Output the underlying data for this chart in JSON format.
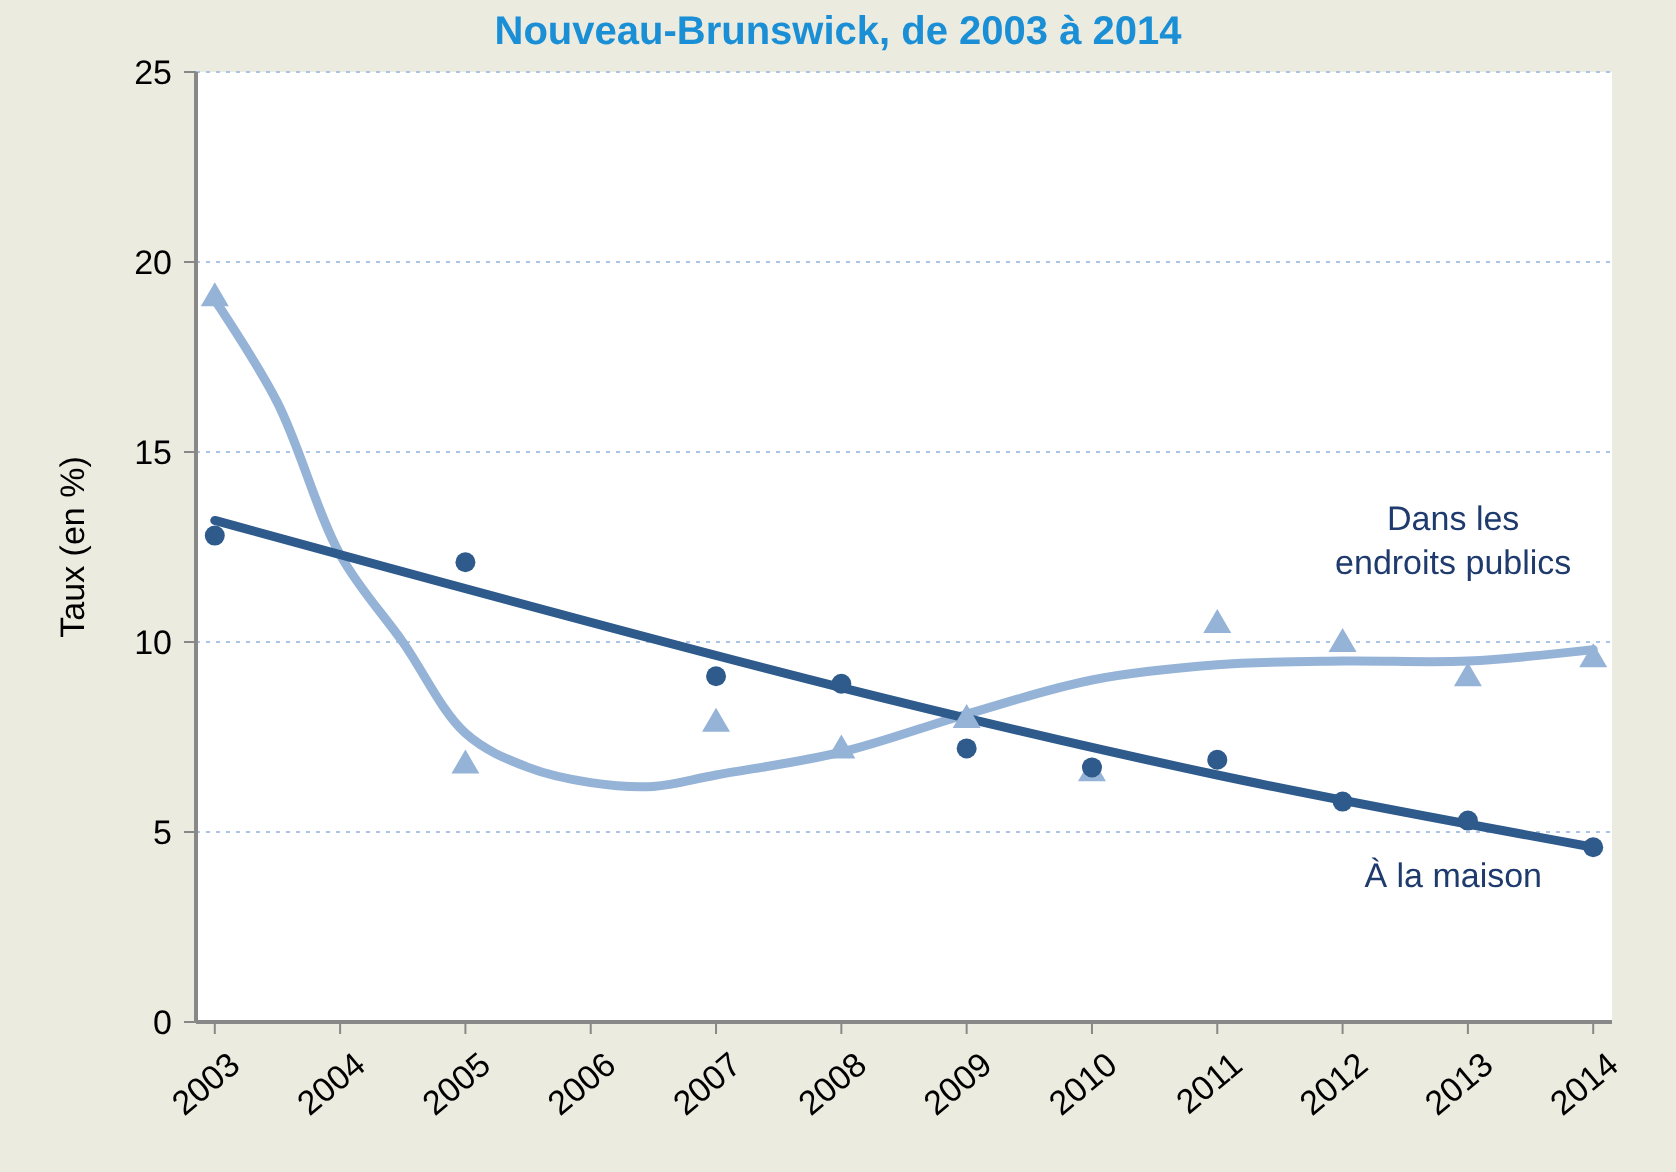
{
  "chart_data": {
    "type": "scatter",
    "title": "Nouveau-Brunswick, de 2003 à 2014",
    "ylabel": "Taux (en %)",
    "xlim": [
      2002.85,
      2014.15
    ],
    "xticks": [
      2003,
      2004,
      2005,
      2006,
      2007,
      2008,
      2009,
      2010,
      2011,
      2012,
      2013,
      2014
    ],
    "ylim": [
      0,
      25
    ],
    "yticks": [
      0,
      5,
      10,
      15,
      20,
      25
    ],
    "grid": "y",
    "series": [
      {
        "marker": "triangle",
        "color": "#95b3d7",
        "x": [
          2003,
          2005,
          2007,
          2008,
          2009,
          2010,
          2011,
          2012,
          2013,
          2014
        ],
        "values": [
          19.1,
          6.8,
          7.9,
          7.2,
          8.0,
          6.6,
          10.5,
          10.0,
          9.1,
          9.6
        ]
      },
      {
        "marker": "circle",
        "color": "#2e5a8c",
        "x": [
          2003,
          2005,
          2007,
          2008,
          2009,
          2010,
          2011,
          2012,
          2013,
          2014
        ],
        "values": [
          12.8,
          12.1,
          9.1,
          8.9,
          7.2,
          6.7,
          6.9,
          5.8,
          5.3,
          4.6
        ]
      },
      {
        "type": "line",
        "name": "Dans les endroits publics",
        "color": "#95b3d7",
        "line_style": "solid",
        "marker": "none",
        "x": [
          2003,
          2003.5,
          2004,
          2004.5,
          2005,
          2005.5,
          2006,
          2006.5,
          2007,
          2008,
          2009,
          2010,
          2011,
          2012,
          2013,
          2014
        ],
        "values": [
          19.0,
          16.3,
          12.3,
          10.0,
          7.6,
          6.7,
          6.3,
          6.2,
          6.5,
          7.1,
          8.1,
          9.0,
          9.4,
          9.5,
          9.5,
          9.8
        ]
      },
      {
        "type": "line",
        "name": "À la maison",
        "color": "#2e5a8c",
        "line_style": "solid",
        "marker": "none",
        "x": [
          2003,
          2008,
          2011,
          2014
        ],
        "values": [
          13.2,
          8.8,
          6.5,
          4.6
        ]
      }
    ]
  }
}
